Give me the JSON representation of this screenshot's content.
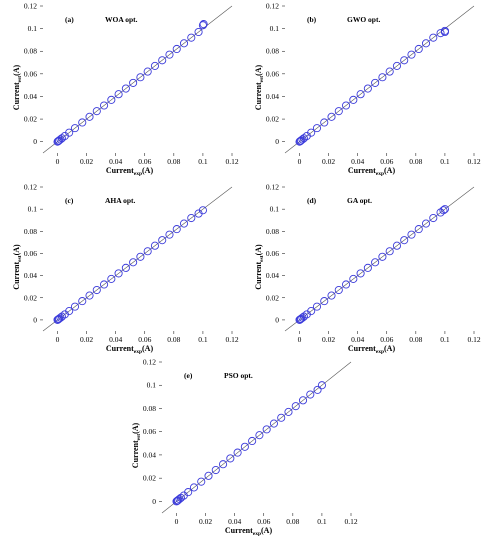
{
  "chart_data": [
    {
      "type": "scatter",
      "panel_label": "(a)",
      "title": "WOA opt.",
      "xlabel": {
        "base": "Current",
        "sub": "exp",
        "unit": "(A)"
      },
      "ylabel": {
        "base": "Current",
        "sub": "est",
        "unit": "(A)"
      },
      "xlim": [
        -0.01,
        0.12
      ],
      "ylim": [
        -0.01,
        0.12
      ],
      "xticks": [
        "0",
        "0.02",
        "0.04",
        "0.06",
        "0.08",
        "0.1",
        "0.12"
      ],
      "yticks": [
        "0",
        "0.02",
        "0.04",
        "0.06",
        "0.08",
        "0.1",
        "0.12"
      ],
      "reference_line": "y=x",
      "marker_color": "#3b3bdb",
      "x": [
        0,
        0.0005,
        0.001,
        0.002,
        0.003,
        0.005,
        0.008,
        0.012,
        0.017,
        0.022,
        0.027,
        0.032,
        0.037,
        0.042,
        0.047,
        0.052,
        0.057,
        0.062,
        0.067,
        0.072,
        0.077,
        0.082,
        0.087,
        0.092,
        0.097,
        0.1,
        0.1005
      ],
      "y": [
        0,
        0.0005,
        0.001,
        0.002,
        0.003,
        0.005,
        0.008,
        0.012,
        0.017,
        0.022,
        0.027,
        0.032,
        0.037,
        0.042,
        0.047,
        0.052,
        0.057,
        0.062,
        0.067,
        0.072,
        0.077,
        0.082,
        0.087,
        0.092,
        0.097,
        0.103,
        0.104
      ]
    },
    {
      "type": "scatter",
      "panel_label": "(b)",
      "title": "GWO opt.",
      "xlabel": {
        "base": "Current",
        "sub": "exp",
        "unit": "(A)"
      },
      "ylabel": {
        "base": "Current",
        "sub": "est",
        "unit": "(A)"
      },
      "xlim": [
        -0.01,
        0.12
      ],
      "ylim": [
        -0.01,
        0.12
      ],
      "xticks": [
        "0",
        "0.02",
        "0.04",
        "0.06",
        "0.08",
        "0.1",
        "0.12"
      ],
      "yticks": [
        "0",
        "0.02",
        "0.04",
        "0.06",
        "0.08",
        "0.1",
        "0.12"
      ],
      "reference_line": "y=x",
      "marker_color": "#3b3bdb",
      "x": [
        0,
        0.0005,
        0.001,
        0.002,
        0.003,
        0.005,
        0.008,
        0.012,
        0.017,
        0.022,
        0.027,
        0.032,
        0.037,
        0.042,
        0.047,
        0.052,
        0.057,
        0.062,
        0.067,
        0.072,
        0.077,
        0.082,
        0.087,
        0.092,
        0.097,
        0.1,
        0.1
      ],
      "y": [
        0,
        0.0005,
        0.001,
        0.002,
        0.003,
        0.005,
        0.008,
        0.012,
        0.017,
        0.022,
        0.027,
        0.032,
        0.037,
        0.042,
        0.047,
        0.052,
        0.057,
        0.062,
        0.067,
        0.072,
        0.077,
        0.082,
        0.087,
        0.092,
        0.096,
        0.098,
        0.097
      ]
    },
    {
      "type": "scatter",
      "panel_label": "(c)",
      "title": "AHA opt.",
      "xlabel": {
        "base": "Current",
        "sub": "exp",
        "unit": "(A)"
      },
      "ylabel": {
        "base": "Current",
        "sub": "est",
        "unit": "(A)"
      },
      "xlim": [
        -0.01,
        0.12
      ],
      "ylim": [
        -0.01,
        0.12
      ],
      "xticks": [
        "0",
        "0.02",
        "0.04",
        "0.06",
        "0.08",
        "0.1",
        "0.12"
      ],
      "yticks": [
        "0",
        "0.02",
        "0.04",
        "0.06",
        "0.08",
        "0.1",
        "0.12"
      ],
      "reference_line": "y=x",
      "marker_color": "#3b3bdb",
      "x": [
        0,
        0.0005,
        0.001,
        0.002,
        0.003,
        0.005,
        0.008,
        0.012,
        0.017,
        0.022,
        0.027,
        0.032,
        0.037,
        0.042,
        0.047,
        0.052,
        0.057,
        0.062,
        0.067,
        0.072,
        0.077,
        0.082,
        0.087,
        0.092,
        0.097,
        0.1
      ],
      "y": [
        0,
        0.0005,
        0.001,
        0.002,
        0.003,
        0.005,
        0.008,
        0.012,
        0.017,
        0.022,
        0.027,
        0.032,
        0.037,
        0.042,
        0.047,
        0.052,
        0.057,
        0.062,
        0.067,
        0.072,
        0.077,
        0.082,
        0.087,
        0.092,
        0.096,
        0.099
      ]
    },
    {
      "type": "scatter",
      "panel_label": "(d)",
      "title": "GA opt.",
      "xlabel": {
        "base": "Current",
        "sub": "exp",
        "unit": "(A)"
      },
      "ylabel": {
        "base": "Current",
        "sub": "est",
        "unit": "(A)"
      },
      "xlim": [
        -0.01,
        0.12
      ],
      "ylim": [
        -0.01,
        0.12
      ],
      "xticks": [
        "0",
        "0.02",
        "0.04",
        "0.06",
        "0.08",
        "0.1",
        "0.12"
      ],
      "yticks": [
        "0",
        "0.02",
        "0.04",
        "0.06",
        "0.08",
        "0.1",
        "0.12"
      ],
      "reference_line": "y=x",
      "marker_color": "#3b3bdb",
      "x": [
        0,
        0.0005,
        0.001,
        0.002,
        0.003,
        0.005,
        0.008,
        0.012,
        0.017,
        0.022,
        0.027,
        0.032,
        0.037,
        0.042,
        0.047,
        0.052,
        0.057,
        0.062,
        0.067,
        0.072,
        0.077,
        0.082,
        0.087,
        0.092,
        0.097,
        0.099,
        0.1
      ],
      "y": [
        0,
        0.0005,
        0.001,
        0.002,
        0.003,
        0.005,
        0.008,
        0.012,
        0.017,
        0.022,
        0.027,
        0.032,
        0.037,
        0.042,
        0.047,
        0.052,
        0.057,
        0.062,
        0.067,
        0.072,
        0.077,
        0.082,
        0.087,
        0.092,
        0.097,
        0.099,
        0.1
      ]
    },
    {
      "type": "scatter",
      "panel_label": "(e)",
      "title": "PSO opt.",
      "xlabel": {
        "base": "Current",
        "sub": "exp",
        "unit": "(A)"
      },
      "ylabel": {
        "base": "Current",
        "sub": "est",
        "unit": "(A)"
      },
      "xlim": [
        -0.01,
        0.12
      ],
      "ylim": [
        -0.01,
        0.12
      ],
      "xticks": [
        "0",
        "0.02",
        "0.04",
        "0.06",
        "0.08",
        "0.1",
        "0.12"
      ],
      "yticks": [
        "0",
        "0.02",
        "0.04",
        "0.06",
        "0.08",
        "0.1",
        "0.12"
      ],
      "reference_line": "y=x",
      "marker_color": "#3b3bdb",
      "x": [
        0,
        0.0005,
        0.001,
        0.002,
        0.003,
        0.005,
        0.008,
        0.012,
        0.017,
        0.022,
        0.027,
        0.032,
        0.037,
        0.042,
        0.047,
        0.052,
        0.057,
        0.062,
        0.067,
        0.072,
        0.077,
        0.082,
        0.087,
        0.092,
        0.097,
        0.1
      ],
      "y": [
        0,
        0.0005,
        0.001,
        0.002,
        0.003,
        0.005,
        0.008,
        0.012,
        0.017,
        0.022,
        0.027,
        0.032,
        0.037,
        0.042,
        0.047,
        0.052,
        0.057,
        0.062,
        0.067,
        0.072,
        0.077,
        0.082,
        0.087,
        0.092,
        0.096,
        0.1
      ]
    }
  ]
}
